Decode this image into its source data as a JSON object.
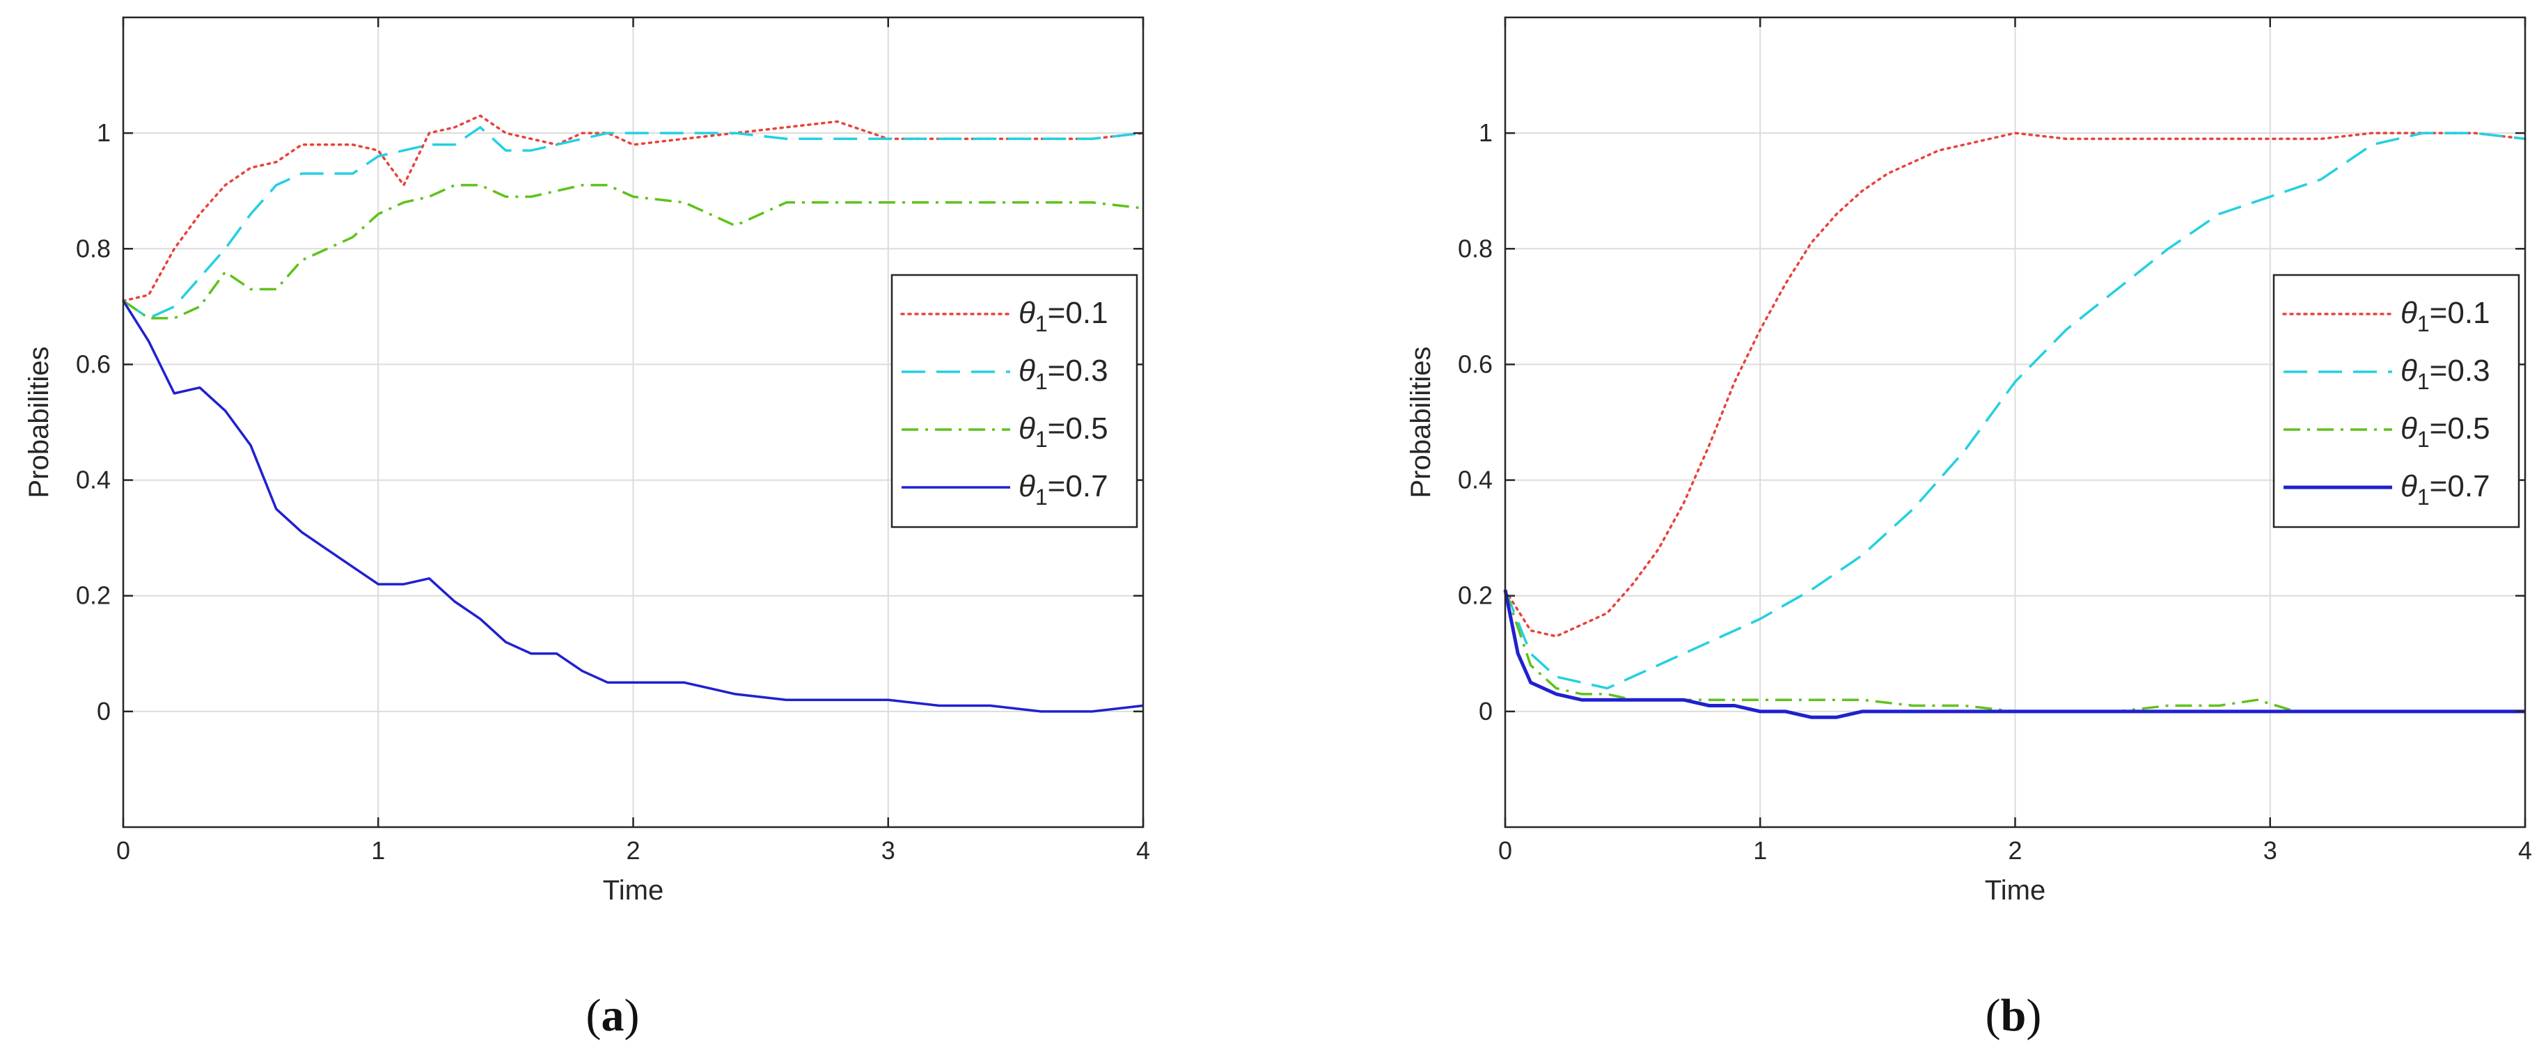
{
  "figure": {
    "panels": [
      {
        "caption_letter": "a"
      },
      {
        "caption_letter": "b"
      }
    ]
  },
  "chart_data": [
    {
      "type": "line",
      "title": "",
      "xlabel": "Time",
      "ylabel": "Probabilities",
      "xlim": [
        0,
        4
      ],
      "ylim": [
        -0.2,
        1.2
      ],
      "xticks": [
        "0",
        "1",
        "2",
        "3",
        "4"
      ],
      "yticks": [
        "0",
        "0.2",
        "0.4",
        "0.6",
        "0.8",
        "1"
      ],
      "grid": true,
      "legend_position": "right",
      "series": [
        {
          "name": "θ1=0.1",
          "color": "#e8423a",
          "dash": "dotted",
          "points": [
            [
              0,
              0.71
            ],
            [
              0.1,
              0.72
            ],
            [
              0.2,
              0.8
            ],
            [
              0.3,
              0.86
            ],
            [
              0.4,
              0.91
            ],
            [
              0.5,
              0.94
            ],
            [
              0.6,
              0.95
            ],
            [
              0.7,
              0.98
            ],
            [
              0.8,
              0.98
            ],
            [
              0.9,
              0.98
            ],
            [
              1.0,
              0.97
            ],
            [
              1.1,
              0.91
            ],
            [
              1.2,
              1.0
            ],
            [
              1.3,
              1.01
            ],
            [
              1.4,
              1.03
            ],
            [
              1.5,
              1.0
            ],
            [
              1.6,
              0.99
            ],
            [
              1.7,
              0.98
            ],
            [
              1.8,
              1.0
            ],
            [
              1.9,
              1.0
            ],
            [
              2.0,
              0.98
            ],
            [
              2.2,
              0.99
            ],
            [
              2.4,
              1.0
            ],
            [
              2.6,
              1.01
            ],
            [
              2.8,
              1.02
            ],
            [
              3.0,
              0.99
            ],
            [
              3.2,
              0.99
            ],
            [
              3.4,
              0.99
            ],
            [
              3.6,
              0.99
            ],
            [
              3.8,
              0.99
            ],
            [
              4.0,
              1.0
            ]
          ]
        },
        {
          "name": "θ1=0.3",
          "color": "#24d0e0",
          "dash": "dashed",
          "points": [
            [
              0,
              0.71
            ],
            [
              0.1,
              0.68
            ],
            [
              0.2,
              0.7
            ],
            [
              0.3,
              0.75
            ],
            [
              0.4,
              0.8
            ],
            [
              0.5,
              0.86
            ],
            [
              0.6,
              0.91
            ],
            [
              0.7,
              0.93
            ],
            [
              0.8,
              0.93
            ],
            [
              0.9,
              0.93
            ],
            [
              1.0,
              0.96
            ],
            [
              1.1,
              0.97
            ],
            [
              1.2,
              0.98
            ],
            [
              1.3,
              0.98
            ],
            [
              1.4,
              1.01
            ],
            [
              1.5,
              0.97
            ],
            [
              1.6,
              0.97
            ],
            [
              1.7,
              0.98
            ],
            [
              1.8,
              0.99
            ],
            [
              1.9,
              1.0
            ],
            [
              2.0,
              1.0
            ],
            [
              2.2,
              1.0
            ],
            [
              2.4,
              1.0
            ],
            [
              2.6,
              0.99
            ],
            [
              2.8,
              0.99
            ],
            [
              3.0,
              0.99
            ],
            [
              3.2,
              0.99
            ],
            [
              3.4,
              0.99
            ],
            [
              3.6,
              0.99
            ],
            [
              3.8,
              0.99
            ],
            [
              4.0,
              1.0
            ]
          ]
        },
        {
          "name": "θ1=0.5",
          "color": "#5fc21b",
          "dash": "dashdot",
          "points": [
            [
              0,
              0.71
            ],
            [
              0.1,
              0.68
            ],
            [
              0.2,
              0.68
            ],
            [
              0.3,
              0.7
            ],
            [
              0.4,
              0.76
            ],
            [
              0.5,
              0.73
            ],
            [
              0.6,
              0.73
            ],
            [
              0.7,
              0.78
            ],
            [
              0.8,
              0.8
            ],
            [
              0.9,
              0.82
            ],
            [
              1.0,
              0.86
            ],
            [
              1.1,
              0.88
            ],
            [
              1.2,
              0.89
            ],
            [
              1.3,
              0.91
            ],
            [
              1.4,
              0.91
            ],
            [
              1.5,
              0.89
            ],
            [
              1.6,
              0.89
            ],
            [
              1.7,
              0.9
            ],
            [
              1.8,
              0.91
            ],
            [
              1.9,
              0.91
            ],
            [
              2.0,
              0.89
            ],
            [
              2.2,
              0.88
            ],
            [
              2.4,
              0.84
            ],
            [
              2.6,
              0.88
            ],
            [
              2.8,
              0.88
            ],
            [
              3.0,
              0.88
            ],
            [
              3.2,
              0.88
            ],
            [
              3.4,
              0.88
            ],
            [
              3.6,
              0.88
            ],
            [
              3.8,
              0.88
            ],
            [
              4.0,
              0.87
            ]
          ]
        },
        {
          "name": "θ1=0.7",
          "color": "#2020d0",
          "dash": "solid",
          "points": [
            [
              0,
              0.71
            ],
            [
              0.1,
              0.64
            ],
            [
              0.2,
              0.55
            ],
            [
              0.3,
              0.56
            ],
            [
              0.4,
              0.52
            ],
            [
              0.5,
              0.46
            ],
            [
              0.6,
              0.35
            ],
            [
              0.7,
              0.31
            ],
            [
              0.8,
              0.28
            ],
            [
              0.9,
              0.25
            ],
            [
              1.0,
              0.22
            ],
            [
              1.1,
              0.22
            ],
            [
              1.2,
              0.23
            ],
            [
              1.3,
              0.19
            ],
            [
              1.4,
              0.16
            ],
            [
              1.5,
              0.12
            ],
            [
              1.6,
              0.1
            ],
            [
              1.7,
              0.1
            ],
            [
              1.8,
              0.07
            ],
            [
              1.9,
              0.05
            ],
            [
              2.0,
              0.05
            ],
            [
              2.2,
              0.05
            ],
            [
              2.4,
              0.03
            ],
            [
              2.6,
              0.02
            ],
            [
              2.8,
              0.02
            ],
            [
              3.0,
              0.02
            ],
            [
              3.2,
              0.01
            ],
            [
              3.4,
              0.01
            ],
            [
              3.6,
              0.0
            ],
            [
              3.8,
              0.0
            ],
            [
              4.0,
              0.01
            ]
          ]
        }
      ]
    },
    {
      "type": "line",
      "title": "",
      "xlabel": "Time",
      "ylabel": "Probabilities",
      "xlim": [
        0,
        4
      ],
      "ylim": [
        -0.2,
        1.2
      ],
      "xticks": [
        "0",
        "1",
        "2",
        "3",
        "4"
      ],
      "yticks": [
        "0",
        "0.2",
        "0.4",
        "0.6",
        "0.8",
        "1"
      ],
      "grid": true,
      "legend_position": "right",
      "series": [
        {
          "name": "θ1=0.1",
          "color": "#e8423a",
          "dash": "dotted",
          "points": [
            [
              0,
              0.21
            ],
            [
              0.1,
              0.14
            ],
            [
              0.2,
              0.13
            ],
            [
              0.3,
              0.15
            ],
            [
              0.4,
              0.17
            ],
            [
              0.5,
              0.22
            ],
            [
              0.6,
              0.28
            ],
            [
              0.7,
              0.36
            ],
            [
              0.8,
              0.46
            ],
            [
              0.9,
              0.57
            ],
            [
              1.0,
              0.66
            ],
            [
              1.1,
              0.74
            ],
            [
              1.2,
              0.81
            ],
            [
              1.3,
              0.86
            ],
            [
              1.4,
              0.9
            ],
            [
              1.5,
              0.93
            ],
            [
              1.6,
              0.95
            ],
            [
              1.7,
              0.97
            ],
            [
              1.8,
              0.98
            ],
            [
              1.9,
              0.99
            ],
            [
              2.0,
              1.0
            ],
            [
              2.2,
              0.99
            ],
            [
              2.4,
              0.99
            ],
            [
              2.6,
              0.99
            ],
            [
              2.8,
              0.99
            ],
            [
              3.0,
              0.99
            ],
            [
              3.2,
              0.99
            ],
            [
              3.4,
              1.0
            ],
            [
              3.6,
              1.0
            ],
            [
              3.8,
              1.0
            ],
            [
              4.0,
              0.99
            ]
          ]
        },
        {
          "name": "θ1=0.3",
          "color": "#24d0e0",
          "dash": "dashed",
          "points": [
            [
              0,
              0.21
            ],
            [
              0.1,
              0.1
            ],
            [
              0.2,
              0.06
            ],
            [
              0.3,
              0.05
            ],
            [
              0.4,
              0.04
            ],
            [
              0.5,
              0.06
            ],
            [
              0.6,
              0.08
            ],
            [
              0.7,
              0.1
            ],
            [
              0.8,
              0.12
            ],
            [
              0.9,
              0.14
            ],
            [
              1.0,
              0.16
            ],
            [
              1.2,
              0.21
            ],
            [
              1.4,
              0.27
            ],
            [
              1.6,
              0.35
            ],
            [
              1.8,
              0.45
            ],
            [
              2.0,
              0.57
            ],
            [
              2.2,
              0.66
            ],
            [
              2.4,
              0.73
            ],
            [
              2.6,
              0.8
            ],
            [
              2.8,
              0.86
            ],
            [
              3.0,
              0.89
            ],
            [
              3.2,
              0.92
            ],
            [
              3.4,
              0.98
            ],
            [
              3.6,
              1.0
            ],
            [
              3.8,
              1.0
            ],
            [
              4.0,
              0.99
            ]
          ]
        },
        {
          "name": "θ1=0.5",
          "color": "#5fc21b",
          "dash": "dashdot",
          "points": [
            [
              0,
              0.21
            ],
            [
              0.1,
              0.08
            ],
            [
              0.2,
              0.04
            ],
            [
              0.3,
              0.03
            ],
            [
              0.4,
              0.03
            ],
            [
              0.5,
              0.02
            ],
            [
              0.6,
              0.02
            ],
            [
              0.7,
              0.02
            ],
            [
              0.8,
              0.02
            ],
            [
              0.9,
              0.02
            ],
            [
              1.0,
              0.02
            ],
            [
              1.2,
              0.02
            ],
            [
              1.4,
              0.02
            ],
            [
              1.6,
              0.01
            ],
            [
              1.8,
              0.01
            ],
            [
              2.0,
              0.0
            ],
            [
              2.2,
              0.0
            ],
            [
              2.4,
              0.0
            ],
            [
              2.6,
              0.01
            ],
            [
              2.8,
              0.01
            ],
            [
              2.95,
              0.02
            ],
            [
              3.1,
              0.0
            ],
            [
              3.4,
              0.0
            ],
            [
              3.6,
              0.0
            ],
            [
              3.8,
              0.0
            ],
            [
              4.0,
              0.0
            ]
          ]
        },
        {
          "name": "θ1=0.7",
          "color": "#2020d0",
          "dash": "solid",
          "points": [
            [
              0,
              0.21
            ],
            [
              0.05,
              0.1
            ],
            [
              0.1,
              0.05
            ],
            [
              0.2,
              0.03
            ],
            [
              0.3,
              0.02
            ],
            [
              0.4,
              0.02
            ],
            [
              0.5,
              0.02
            ],
            [
              0.6,
              0.02
            ],
            [
              0.7,
              0.02
            ],
            [
              0.8,
              0.01
            ],
            [
              0.9,
              0.01
            ],
            [
              1.0,
              0.0
            ],
            [
              1.1,
              0.0
            ],
            [
              1.2,
              -0.01
            ],
            [
              1.3,
              -0.01
            ],
            [
              1.4,
              0.0
            ],
            [
              1.6,
              0.0
            ],
            [
              1.8,
              0.0
            ],
            [
              2.0,
              0.0
            ],
            [
              2.4,
              0.0
            ],
            [
              2.8,
              0.0
            ],
            [
              3.2,
              0.0
            ],
            [
              3.6,
              0.0
            ],
            [
              4.0,
              0.0
            ]
          ]
        }
      ]
    }
  ]
}
